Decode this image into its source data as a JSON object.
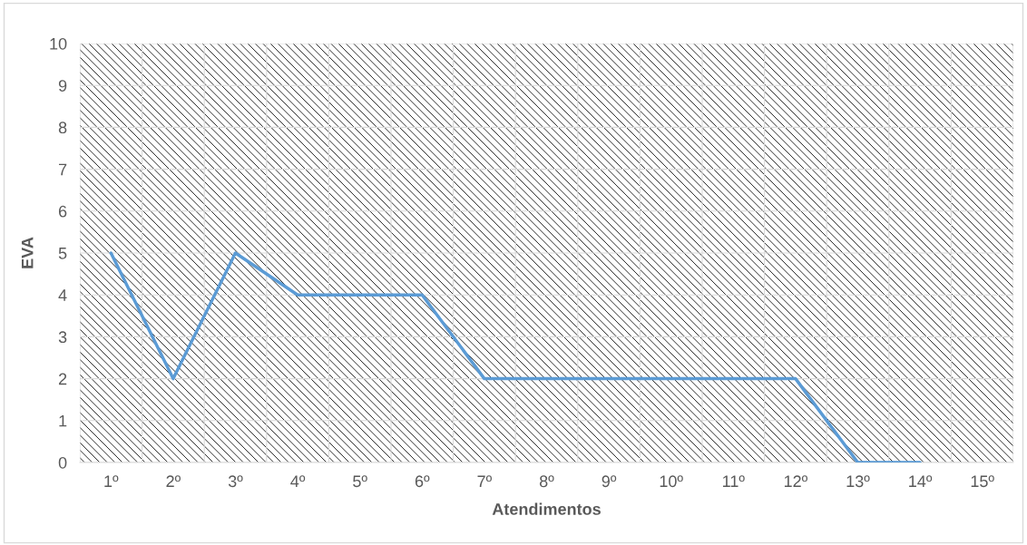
{
  "chart_data": {
    "type": "line",
    "xlabel": "Atendimentos",
    "ylabel": "EVA",
    "categories": [
      "1º",
      "2º",
      "3º",
      "4º",
      "5º",
      "6º",
      "7º",
      "8º",
      "9º",
      "10º",
      "11º",
      "12º",
      "13º",
      "14º",
      "15º"
    ],
    "series": [
      {
        "color": "#5b9bd5",
        "values": [
          5,
          2,
          5,
          4,
          4,
          4,
          2,
          2,
          2,
          2,
          2,
          2,
          0,
          0,
          null
        ]
      }
    ],
    "ylim": [
      0,
      10
    ],
    "yticks": [
      0,
      1,
      2,
      3,
      4,
      5,
      6,
      7,
      8,
      9,
      10
    ],
    "grid": true,
    "marker": "none",
    "line_style": "solid"
  }
}
